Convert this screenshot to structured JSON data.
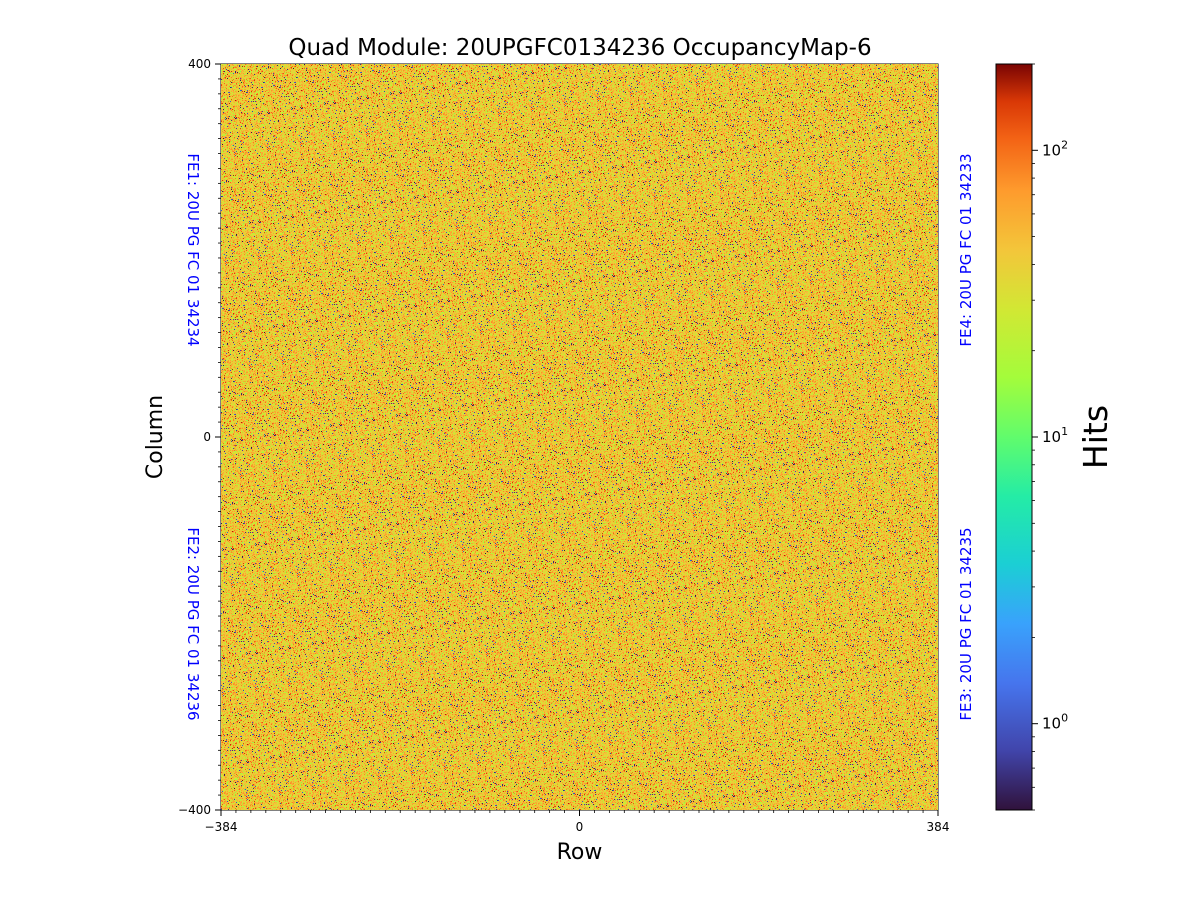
{
  "chart_data": {
    "type": "heatmap",
    "title": "Quad Module: 20UPGFC0134236 OccupancyMap-6",
    "xlabel": "Row",
    "ylabel": "Column",
    "xlim": [
      -384,
      384
    ],
    "ylim": [
      -400,
      400
    ],
    "x_ticks": [
      "−384",
      "0",
      "384"
    ],
    "y_ticks": [
      "400",
      "0",
      "−400"
    ],
    "colorbar": {
      "label": "Hits",
      "scale": "log",
      "range": [
        0.5,
        200
      ],
      "ticks": [
        {
          "value": 1,
          "base": "10",
          "exp": "0"
        },
        {
          "value": 10,
          "base": "10",
          "exp": "1"
        },
        {
          "value": 100,
          "base": "10",
          "exp": "2"
        }
      ],
      "colormap": "turbo"
    },
    "annotations": {
      "fe1": "FE1: 20U PG FC 01 34234",
      "fe2": "FE2: 20U PG FC 01 34236",
      "fe3": "FE3: 20U PG FC 01 34235",
      "fe4": "FE4: 20U PG FC 01 34233"
    },
    "quadrant_dividers": {
      "x": 0,
      "y": 0
    },
    "distribution": "random occupancy concentrated around 20-40 hits with sparse low (dark) and high (red) pixels"
  },
  "colors": {
    "annotation": "#0000ff",
    "divider": "#000000"
  }
}
